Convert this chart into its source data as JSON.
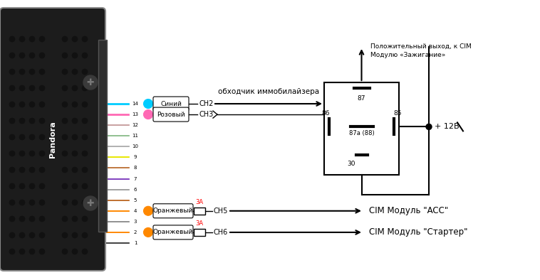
{
  "bg_color": "#ffffff",
  "wire_colors": {
    "14": "#00ccff",
    "13": "#ff69b4",
    "12": "#c8a0a0",
    "11": "#90c090",
    "10": "#b0b0b0",
    "9": "#e8e800",
    "8": "#c07840",
    "7": "#8040c0",
    "6": "#a0a0a0",
    "5": "#c07030",
    "4": "#ff8800",
    "3": "#909090",
    "2": "#ff8800",
    "1": "#404040"
  },
  "label_14": "Синий",
  "label_13": "Розовый",
  "label_4": "Оранжевый",
  "label_2": "Оранжевый",
  "ch2_label": "CH2",
  "ch3_label": "CH3",
  "ch5_label": "CH5",
  "ch6_label": "CH6",
  "immob_label": "обходчик иммобилайзера",
  "acc_label": "CIM Модуль \"ACC\"",
  "starter_label": "CIM Модуль \"Стартер\"",
  "relay_top_label": "Положительный выход, к CIM",
  "relay_top_label2": "Модулю «Зажигание»",
  "relay_86": "86",
  "relay_85": "85",
  "relay_87": "87",
  "relay_87a": "87a (88)",
  "relay_30": "30",
  "plus12v": "+ 12В",
  "fuse_label": "3A"
}
